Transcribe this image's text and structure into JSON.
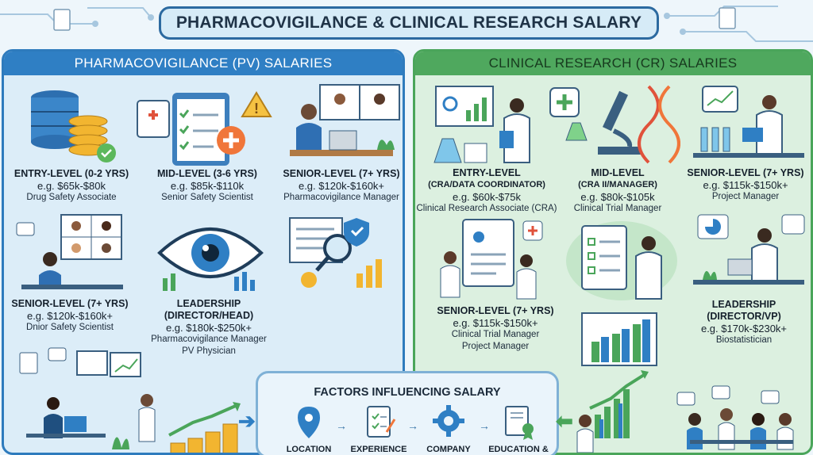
{
  "title": "PHARMACOVIGILANCE & CLINICAL RESEARCH SALARY",
  "pv": {
    "heading": "PHARMACOVIGILANCE (PV) SALARIES",
    "tiers": [
      {
        "level": "ENTRY-LEVEL (0-2 YRS)",
        "salary": "e.g. $65k-$80k",
        "role": "Drug Safety Associate",
        "role2": ""
      },
      {
        "level": "MID-LEVEL (3-6 YRS)",
        "salary": "e.g. $85k-$110k",
        "role": "Senior Safety Scientist",
        "role2": ""
      },
      {
        "level": "SENIOR-LEVEL (7+ YRS)",
        "salary": "e.g. $120k-$160k+",
        "role": "Pharmacovigilance Manager",
        "role2": ""
      },
      {
        "level": "SENIOR-LEVEL (7+ YRS)",
        "salary": "e.g. $120k-$160k+",
        "role": "Dnior Safety Scientist",
        "role2": ""
      },
      {
        "level": "LEADERSHIP (DIRECTOR/HEAD)",
        "salary": "e.g. $180k-$250k+",
        "role": "Pharmacovigilance Manager",
        "role2": "PV Physician"
      }
    ]
  },
  "cr": {
    "heading": "CLINICAL RESEARCH (CR) SALARIES",
    "tiers": [
      {
        "level": "ENTRY-LEVEL",
        "level2": "(CRA/DATA COORDINATOR)",
        "salary": "e.g. $60k-$75k",
        "role": "Clinical Research Associate (CRA)"
      },
      {
        "level": "MID-LEVEL",
        "level2": "(CRA II/MANAGER)",
        "salary": "e.g. $80k-$105k",
        "role": "Clinical Trial Manager"
      },
      {
        "level": "SENIOR-LEVEL (7+ YRS)",
        "level2": "",
        "salary": "e.g. $115k-$150k+",
        "role": "Project Manager"
      },
      {
        "level": "SENIOR-LEVEL (7+ YRS)",
        "level2": "",
        "salary": "e.g. $115k-$150k+",
        "role": "Clinical Trial Manager",
        "role2": "Project Manager"
      },
      {
        "level": "LEADERSHIP (DIRECTOR/VP)",
        "level2": "",
        "salary": "e.g. $170k-$230k+",
        "role": "Biostatistician"
      }
    ]
  },
  "factors": {
    "title": "FACTORS INFLUENCING SALARY",
    "items": [
      {
        "label": "LOCATION",
        "icon": "location-pin-icon"
      },
      {
        "label": "EXPERIENCE",
        "icon": "clipboard-check-icon"
      },
      {
        "label": "COMPANY TYPE",
        "icon": "gear-icon"
      },
      {
        "label": "EDUCATION &",
        "icon": "certificate-icon"
      }
    ]
  },
  "colors": {
    "pv_accent": "#2f7fc4",
    "cr_accent": "#4fa85e",
    "title_border": "#2c6aa0"
  }
}
